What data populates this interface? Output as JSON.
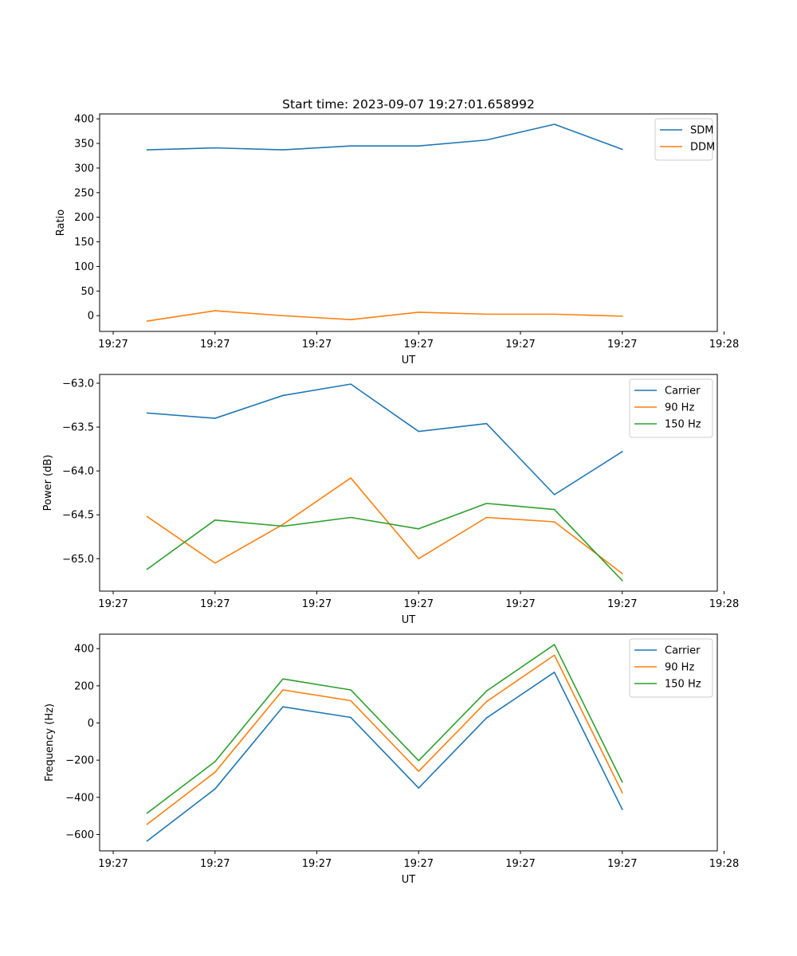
{
  "figure_title": "Start time: 2023-09-07 19:27:01.658992",
  "chart_data": [
    {
      "type": "line",
      "title": "Start time: 2023-09-07 19:27:01.658992",
      "xlabel": "UT",
      "ylabel": "Ratio",
      "x": [
        1,
        2,
        3,
        4,
        5,
        6,
        7,
        8
      ],
      "xlim": [
        0.3,
        9.4
      ],
      "xticks": [
        0.5,
        2.0,
        3.5,
        5.0,
        6.5,
        8.0,
        9.5
      ],
      "xtick_labels": [
        "19:27",
        "19:27",
        "19:27",
        "19:27",
        "19:27",
        "19:27",
        "19:28"
      ],
      "ylim": [
        -32,
        410
      ],
      "yticks": [
        0,
        50,
        100,
        150,
        200,
        250,
        300,
        350,
        400
      ],
      "ytick_labels": [
        "0",
        "50",
        "100",
        "150",
        "200",
        "250",
        "300",
        "350",
        "400"
      ],
      "legend_position": "top-right",
      "series": [
        {
          "name": "SDM",
          "color": "#1f77b4",
          "values": [
            337,
            341,
            337,
            345,
            345,
            357,
            389,
            338
          ]
        },
        {
          "name": "DDM",
          "color": "#ff7f0e",
          "values": [
            -11,
            10,
            0,
            -8,
            7,
            3,
            3,
            -1
          ]
        }
      ]
    },
    {
      "type": "line",
      "title": "",
      "xlabel": "UT",
      "ylabel": "Power (dB)",
      "x": [
        1,
        2,
        3,
        4,
        5,
        6,
        7,
        8
      ],
      "xlim": [
        0.3,
        9.4
      ],
      "xticks": [
        0.5,
        2.0,
        3.5,
        5.0,
        6.5,
        8.0,
        9.5
      ],
      "xtick_labels": [
        "19:27",
        "19:27",
        "19:27",
        "19:27",
        "19:27",
        "19:27",
        "19:28"
      ],
      "ylim": [
        -65.37,
        -62.9
      ],
      "yticks": [
        -65.0,
        -64.5,
        -64.0,
        -63.5,
        -63.0
      ],
      "ytick_labels": [
        "−65.0",
        "−64.5",
        "−64.0",
        "−63.5",
        "−63.0"
      ],
      "legend_position": "top-right",
      "series": [
        {
          "name": "Carrier",
          "color": "#1f77b4",
          "values": [
            -63.34,
            -63.4,
            -63.14,
            -63.01,
            -63.55,
            -63.46,
            -64.27,
            -63.78
          ]
        },
        {
          "name": "90 Hz",
          "color": "#ff7f0e",
          "values": [
            -64.52,
            -65.05,
            -64.61,
            -64.08,
            -65.0,
            -64.53,
            -64.58,
            -65.17
          ]
        },
        {
          "name": "150 Hz",
          "color": "#2ca02c",
          "values": [
            -65.12,
            -64.56,
            -64.63,
            -64.53,
            -64.66,
            -64.37,
            -64.44,
            -65.25
          ]
        }
      ]
    },
    {
      "type": "line",
      "title": "",
      "xlabel": "UT",
      "ylabel": "Frequency (Hz)",
      "x": [
        1,
        2,
        3,
        4,
        5,
        6,
        7,
        8
      ],
      "xlim": [
        0.3,
        9.4
      ],
      "xticks": [
        0.5,
        2.0,
        3.5,
        5.0,
        6.5,
        8.0,
        9.5
      ],
      "xtick_labels": [
        "19:27",
        "19:27",
        "19:27",
        "19:27",
        "19:27",
        "19:27",
        "19:28"
      ],
      "ylim": [
        -688,
        478
      ],
      "yticks": [
        -600,
        -400,
        -200,
        0,
        200,
        400
      ],
      "ytick_labels": [
        "−600",
        "−400",
        "−200",
        "0",
        "200",
        "400"
      ],
      "legend_position": "top-right",
      "series": [
        {
          "name": "Carrier",
          "color": "#1f77b4",
          "values": [
            -635,
            -355,
            87,
            30,
            -350,
            27,
            273,
            -465
          ]
        },
        {
          "name": "90 Hz",
          "color": "#ff7f0e",
          "values": [
            -545,
            -265,
            178,
            120,
            -260,
            115,
            365,
            -375
          ]
        },
        {
          "name": "150 Hz",
          "color": "#2ca02c",
          "values": [
            -485,
            -208,
            237,
            178,
            -203,
            172,
            422,
            -318
          ]
        }
      ]
    }
  ]
}
